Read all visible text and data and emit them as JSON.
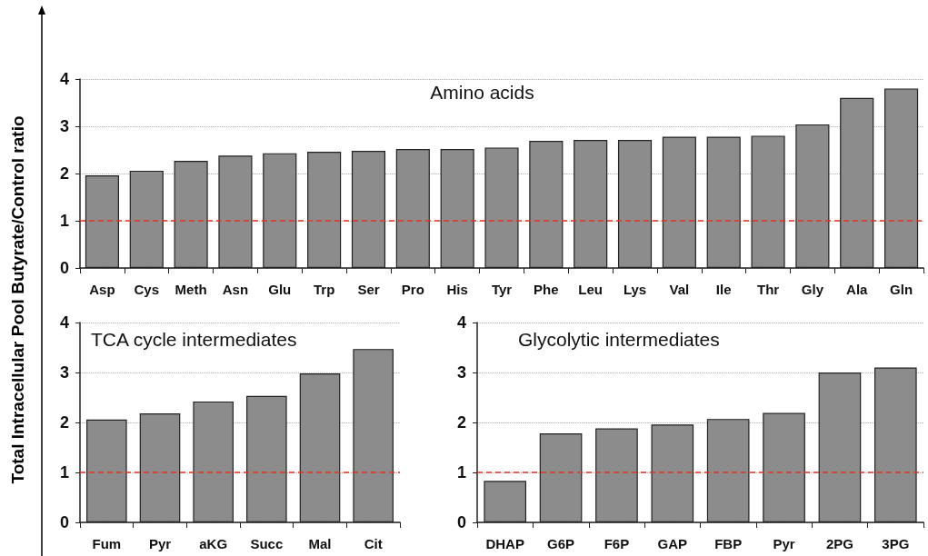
{
  "chart_data": [
    {
      "type": "bar",
      "title": "Amino acids",
      "ylabel": "Total Intracellular Pool Butyrate/Control ratio",
      "categories": [
        "Asp",
        "Cys",
        "Meth",
        "Asn",
        "Glu",
        "Trp",
        "Ser",
        "Pro",
        "His",
        "Tyr",
        "Phe",
        "Leu",
        "Lys",
        "Val",
        "Ile",
        "Thr",
        "Gly",
        "Ala",
        "Gln"
      ],
      "values": [
        1.96,
        2.06,
        2.27,
        2.38,
        2.43,
        2.46,
        2.48,
        2.52,
        2.52,
        2.55,
        2.69,
        2.71,
        2.71,
        2.78,
        2.78,
        2.8,
        3.04,
        3.6,
        3.8
      ],
      "color": "#8c8c8c",
      "ylim": [
        0,
        4
      ],
      "yticks": [
        0,
        1,
        2,
        3,
        4
      ],
      "grid": "y",
      "ref_lines": [
        {
          "axis": "y",
          "value": 1,
          "label": null,
          "color": "#e8321e",
          "line_style": "dashed"
        }
      ]
    },
    {
      "type": "bar",
      "title": "TCA cycle intermediates",
      "categories": [
        "Fum",
        "Pyr",
        "aKG",
        "Succ",
        "Mal",
        "Cit"
      ],
      "values": [
        2.06,
        2.18,
        2.42,
        2.53,
        2.98,
        3.47
      ],
      "color": "#8c8c8c",
      "ylim": [
        0,
        4
      ],
      "yticks": [
        0,
        1,
        2,
        3,
        4
      ],
      "grid": "y",
      "ref_lines": [
        {
          "axis": "y",
          "value": 1,
          "label": null,
          "color": "#e8321e",
          "line_style": "dashed"
        }
      ]
    },
    {
      "type": "bar",
      "title": "Glycolytic intermediates",
      "categories": [
        "DHAP",
        "G6P",
        "F6P",
        "GAP",
        "FBP",
        "Pyr",
        "2PG",
        "3PG"
      ],
      "values": [
        0.83,
        1.78,
        1.88,
        1.96,
        2.07,
        2.19,
        3.0,
        3.1
      ],
      "color": "#8c8c8c",
      "ylim": [
        0,
        4
      ],
      "yticks": [
        0,
        1,
        2,
        3,
        4
      ],
      "grid": "y",
      "ref_lines": [
        {
          "axis": "y",
          "value": 1,
          "label": null,
          "color": "#e8321e",
          "line_style": "dashed"
        }
      ]
    }
  ]
}
